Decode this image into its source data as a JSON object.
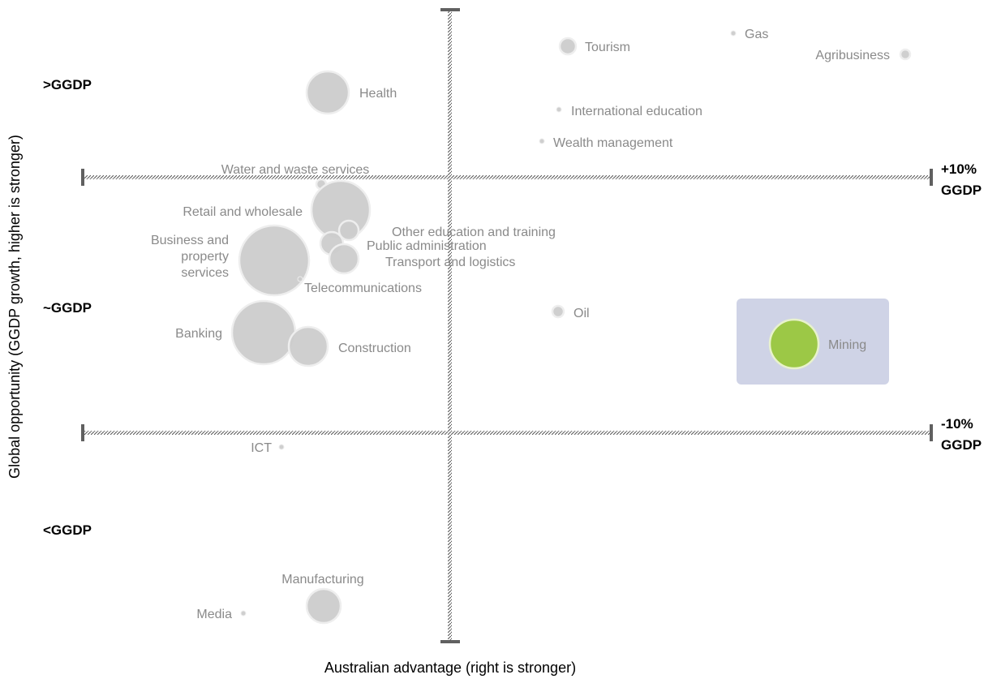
{
  "chart_data": {
    "type": "bubble",
    "xlabel": "Australian advantage (right is stronger)",
    "ylabel": "Global opportunity (GGDP growth, higher is stronger)",
    "y_band_labels": [
      ">GGDP",
      "~GGDP",
      "<GGDP"
    ],
    "reference_lines": [
      {
        "line1": "+10%",
        "line2": "GGDP"
      },
      {
        "line1": "-10%",
        "line2": "GGDP"
      }
    ],
    "highlight_color": "#cfd3e6",
    "bubble_color": "#cccccc",
    "highlight_bubble_color": "#9cc846",
    "points": [
      {
        "label": "Tourism",
        "size": 10,
        "highlight": false
      },
      {
        "label": "Gas",
        "size": 3,
        "highlight": false
      },
      {
        "label": "Agribusiness",
        "size": 6,
        "highlight": false
      },
      {
        "label": "Health",
        "size": 26,
        "highlight": false
      },
      {
        "label": "International education",
        "size": 3,
        "highlight": false
      },
      {
        "label": "Wealth management",
        "size": 3,
        "highlight": false
      },
      {
        "label": "Water and waste services",
        "size": 6,
        "highlight": false
      },
      {
        "label": "Retail and wholesale",
        "size": 36,
        "highlight": false
      },
      {
        "label": "Other education and training",
        "size": 12,
        "highlight": false
      },
      {
        "label": "Public administration",
        "size": 14,
        "highlight": false
      },
      {
        "label": "Transport and logistics",
        "size": 18,
        "highlight": false
      },
      {
        "label": "Business and property services",
        "size": 43,
        "highlight": false
      },
      {
        "label": "Telecommunications",
        "size": 3,
        "highlight": false
      },
      {
        "label": "Oil",
        "size": 7,
        "highlight": false
      },
      {
        "label": "Mining",
        "size": 30,
        "highlight": true
      },
      {
        "label": "Banking",
        "size": 39,
        "highlight": false
      },
      {
        "label": "Construction",
        "size": 24,
        "highlight": false
      },
      {
        "label": "ICT",
        "size": 3,
        "highlight": false
      },
      {
        "label": "Manufacturing",
        "size": 21,
        "highlight": false
      },
      {
        "label": "Media",
        "size": 3,
        "highlight": false
      }
    ]
  }
}
